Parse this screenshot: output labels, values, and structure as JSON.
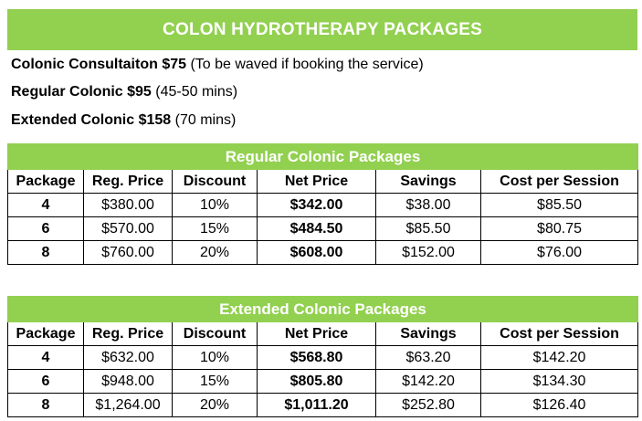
{
  "title": "COLON HYDROTHERAPY PACKAGES",
  "services": [
    {
      "name": "Colonic Consultaiton $75",
      "note": " (To be waved if booking the service)"
    },
    {
      "name": "Regular Colonic $95",
      "note": "  (45-50 mins)"
    },
    {
      "name": "Extended Colonic $158",
      "note": " (70 mins)"
    }
  ],
  "columns": [
    "Package",
    "Reg. Price",
    "Discount",
    "Net Price",
    "Savings",
    "Cost per Session"
  ],
  "regular": {
    "title": "Regular Colonic Packages",
    "rows": [
      [
        "4",
        "$380.00",
        "10%",
        "$342.00",
        "$38.00",
        "$85.50"
      ],
      [
        "6",
        "$570.00",
        "15%",
        "$484.50",
        "$85.50",
        "$80.75"
      ],
      [
        "8",
        "$760.00",
        "20%",
        "$608.00",
        "$152.00",
        "$76.00"
      ]
    ]
  },
  "extended": {
    "title": "Extended Colonic Packages",
    "rows": [
      [
        "4",
        "$632.00",
        "10%",
        "$568.80",
        "$63.20",
        "$142.20"
      ],
      [
        "6",
        "$948.00",
        "15%",
        "$805.80",
        "$142.20",
        "$134.30"
      ],
      [
        "8",
        "$1,264.00",
        "20%",
        "$1,011.20",
        "$252.80",
        "$126.40"
      ]
    ]
  },
  "colors": {
    "banner": "#92d050",
    "banner_text": "#ffffff",
    "text": "#000000"
  }
}
